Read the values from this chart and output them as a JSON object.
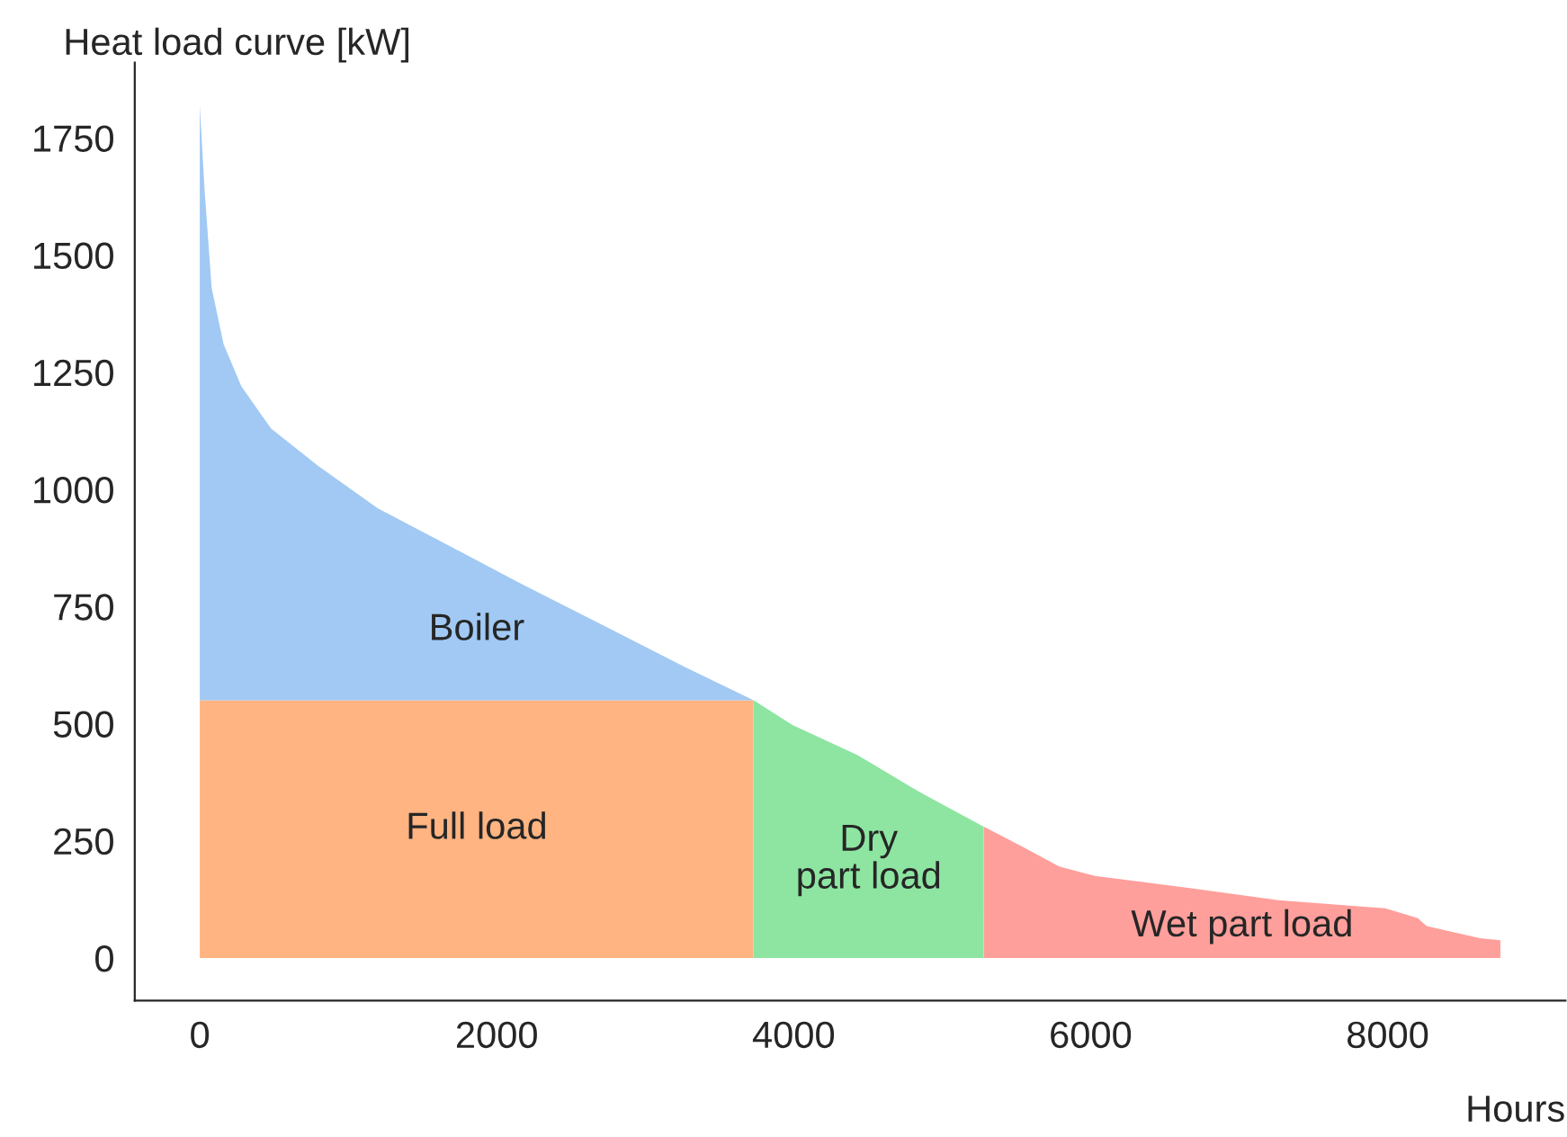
{
  "chart_data": {
    "type": "area",
    "stacked": true,
    "xlabel": "Hours",
    "ylabel": "Heat load curve [kW]",
    "xlim": [
      -438,
      9198
    ],
    "ylim": [
      -91,
      1911
    ],
    "xticks": [
      0,
      2000,
      4000,
      6000,
      8000
    ],
    "yticks": [
      0,
      250,
      500,
      750,
      1000,
      1250,
      1500,
      1750
    ],
    "grid": false,
    "legend": false,
    "x": [
      0,
      32,
      80,
      160,
      280,
      479,
      798,
      1198,
      1677,
      2156,
      2715,
      3273,
      3730,
      3731,
      3992,
      4431,
      4870,
      5280,
      5281,
      5549,
      5788,
      6028,
      6667,
      7265,
      7984,
      8204,
      8263,
      8623,
      8760
    ],
    "series": [
      {
        "name": "Full load",
        "color": "#ffb482",
        "values": [
          550,
          550,
          550,
          550,
          550,
          550,
          550,
          550,
          550,
          550,
          550,
          550,
          550,
          null,
          null,
          null,
          null,
          null,
          null,
          null,
          null,
          null,
          null,
          null,
          null,
          null,
          null,
          null,
          null
        ]
      },
      {
        "name": "Boiler",
        "color": "#a1c9f4",
        "values": [
          1270,
          1090,
          880,
          760,
          670,
          580,
          500,
          410,
          330,
          250,
          160,
          70,
          0,
          null,
          null,
          null,
          null,
          null,
          null,
          null,
          null,
          null,
          null,
          null,
          null,
          null,
          null,
          null,
          null
        ]
      },
      {
        "name": "Dry\npart load",
        "color": "#8de5a1",
        "values": [
          null,
          null,
          null,
          null,
          null,
          null,
          null,
          null,
          null,
          null,
          null,
          null,
          null,
          550,
          497,
          433,
          350,
          280,
          null,
          null,
          null,
          null,
          null,
          null,
          null,
          null,
          null,
          null,
          null
        ]
      },
      {
        "name": "Wet part load",
        "color": "#ff9f9b",
        "values": [
          null,
          null,
          null,
          null,
          null,
          null,
          null,
          null,
          null,
          null,
          null,
          null,
          null,
          null,
          null,
          null,
          null,
          null,
          280,
          236,
          195,
          175,
          149,
          123,
          106,
          85,
          68,
          42,
          38
        ]
      }
    ]
  }
}
